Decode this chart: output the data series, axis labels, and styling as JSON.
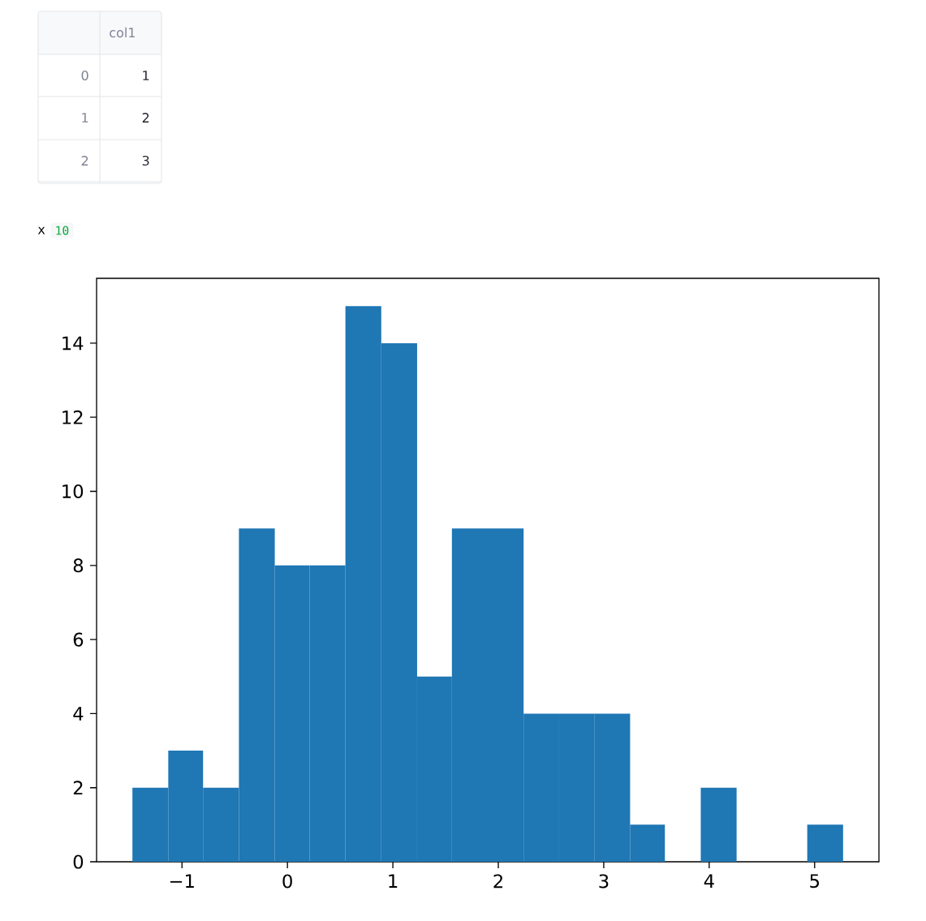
{
  "chart_data": [
    {
      "type": "other",
      "annotations": [
        "col1",
        "0",
        "1",
        "2",
        "1",
        "2",
        "3",
        "x",
        "10"
      ]
    },
    {
      "type": "histogram",
      "color": "#1f77b4",
      "bins": [
        -1.47,
        -1.13,
        -0.8,
        -0.46,
        -0.12,
        0.21,
        0.55,
        0.89,
        1.23,
        1.56,
        1.9,
        2.24,
        2.57,
        2.91,
        3.25,
        3.58,
        3.92,
        4.26,
        4.93,
        5.27
      ],
      "values": [
        2,
        3,
        2,
        9,
        8,
        8,
        15,
        14,
        5,
        9,
        9,
        4,
        4,
        4,
        1,
        0,
        2,
        0,
        1
      ],
      "xlim": [
        -1.81,
        5.61
      ],
      "ylim": [
        0,
        15.75
      ],
      "xticks": [
        {
          "value": -1,
          "label": "−1"
        },
        0,
        1,
        2,
        3,
        4,
        5
      ],
      "yticks": [
        0,
        2,
        4,
        6,
        8,
        10,
        12,
        14
      ]
    }
  ]
}
